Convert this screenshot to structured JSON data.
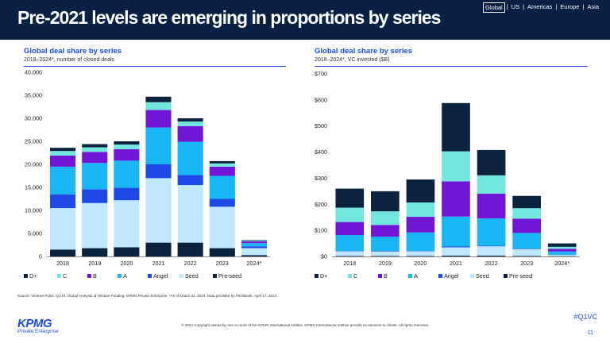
{
  "header": {
    "title": "Pre-2021 levels are emerging in proportions by series",
    "regions": [
      "Global",
      "US",
      "Americas",
      "Europe",
      "Asia"
    ],
    "active_region": "Global"
  },
  "left_panel": {
    "title": "Global deal share by series",
    "subtitle": "2018–2024*, number of closed deals"
  },
  "right_panel": {
    "title": "Global deal share by series",
    "subtitle": "2018–2024*, VC invested ($B)"
  },
  "chart_data": [
    {
      "type": "bar",
      "stacked": true,
      "title": "Global deal share by series",
      "subtitle": "2018–2024*, number of closed deals",
      "categories": [
        "2018",
        "2019",
        "2020",
        "2021",
        "2022",
        "2023",
        "2024*"
      ],
      "ylim": [
        0,
        40000
      ],
      "yticks": [
        0,
        5000,
        10000,
        15000,
        20000,
        25000,
        30000,
        35000,
        40000
      ],
      "ytick_labels": [
        "0",
        "5,000",
        "10,000",
        "15,000",
        "20,000",
        "25,000",
        "30,000",
        "35,000",
        "40,000"
      ],
      "legend_position": "bottom",
      "series": [
        {
          "name": "Pre-seed",
          "color": "#0c233f",
          "values": [
            1500,
            1800,
            2000,
            3000,
            3000,
            1800,
            300
          ]
        },
        {
          "name": "Seed",
          "color": "#bfe7ff",
          "values": [
            9000,
            9800,
            10200,
            14000,
            12500,
            9000,
            1500
          ]
        },
        {
          "name": "Angel",
          "color": "#1f49e6",
          "values": [
            3000,
            3000,
            2700,
            3000,
            2200,
            1700,
            400
          ]
        },
        {
          "name": "A",
          "color": "#18b6f4",
          "values": [
            6000,
            5700,
            5900,
            8000,
            7200,
            5000,
            700
          ]
        },
        {
          "name": "B",
          "color": "#7115d6",
          "values": [
            2400,
            2400,
            2500,
            3800,
            3400,
            2000,
            400
          ]
        },
        {
          "name": "C",
          "color": "#73e6dd",
          "values": [
            1000,
            1000,
            1000,
            1700,
            1000,
            700,
            200
          ]
        },
        {
          "name": "D+",
          "color": "#0c233f",
          "values": [
            700,
            700,
            700,
            1200,
            700,
            500,
            100
          ]
        }
      ],
      "legend_order": [
        "D+",
        "C",
        "B",
        "A",
        "Angel",
        "Seed",
        "Pre-seed"
      ]
    },
    {
      "type": "bar",
      "stacked": true,
      "title": "Global deal share by series",
      "subtitle": "2018–2024*, VC invested ($B)",
      "categories": [
        "2018",
        "2019",
        "2020",
        "2021",
        "2022",
        "2023",
        "2024*"
      ],
      "ylim": [
        0,
        700
      ],
      "yticks": [
        0,
        100,
        200,
        300,
        400,
        500,
        600,
        700
      ],
      "ytick_labels": [
        "$0",
        "$100",
        "$200",
        "$300",
        "$400",
        "$500",
        "$600",
        "$700"
      ],
      "legend_position": "bottom",
      "series": [
        {
          "name": "Pre-seed",
          "color": "#0c233f",
          "values": [
            2,
            2,
            2,
            3,
            3,
            2,
            1
          ]
        },
        {
          "name": "Seed",
          "color": "#bfe7ff",
          "values": [
            18,
            17,
            18,
            32,
            36,
            26,
            5
          ]
        },
        {
          "name": "Angel",
          "color": "#1f49e6",
          "values": [
            2,
            2,
            2,
            3,
            2,
            2,
            1
          ]
        },
        {
          "name": "A",
          "color": "#18b6f4",
          "values": [
            60,
            55,
            70,
            115,
            105,
            60,
            12
          ]
        },
        {
          "name": "B",
          "color": "#7115d6",
          "values": [
            50,
            45,
            60,
            135,
            95,
            55,
            10
          ]
        },
        {
          "name": "C",
          "color": "#73e6dd",
          "values": [
            55,
            52,
            55,
            115,
            70,
            40,
            8
          ]
        },
        {
          "name": "D+",
          "color": "#0c233f",
          "values": [
            73,
            77,
            88,
            185,
            97,
            47,
            13
          ]
        }
      ],
      "legend_order": [
        "D+",
        "C",
        "B",
        "A",
        "Angel",
        "Seed",
        "Pre-seed"
      ]
    }
  ],
  "footer": {
    "source": "Source: Venture Pulse, Q1'24, Global Analysis of Venture Funding, KPMG Private Enterprise. *As of March 31, 2024. Data provided by PitchBook, April 17, 2024.",
    "logo": "KPMG",
    "logo_sub": "Private Enterprise",
    "copyright": "© 2024 Copyright owned by one or more of the KPMG International entities. KPMG International entities provide no services to clients. All rights reserved.",
    "hashtag": "#Q1VC",
    "page": "11"
  }
}
